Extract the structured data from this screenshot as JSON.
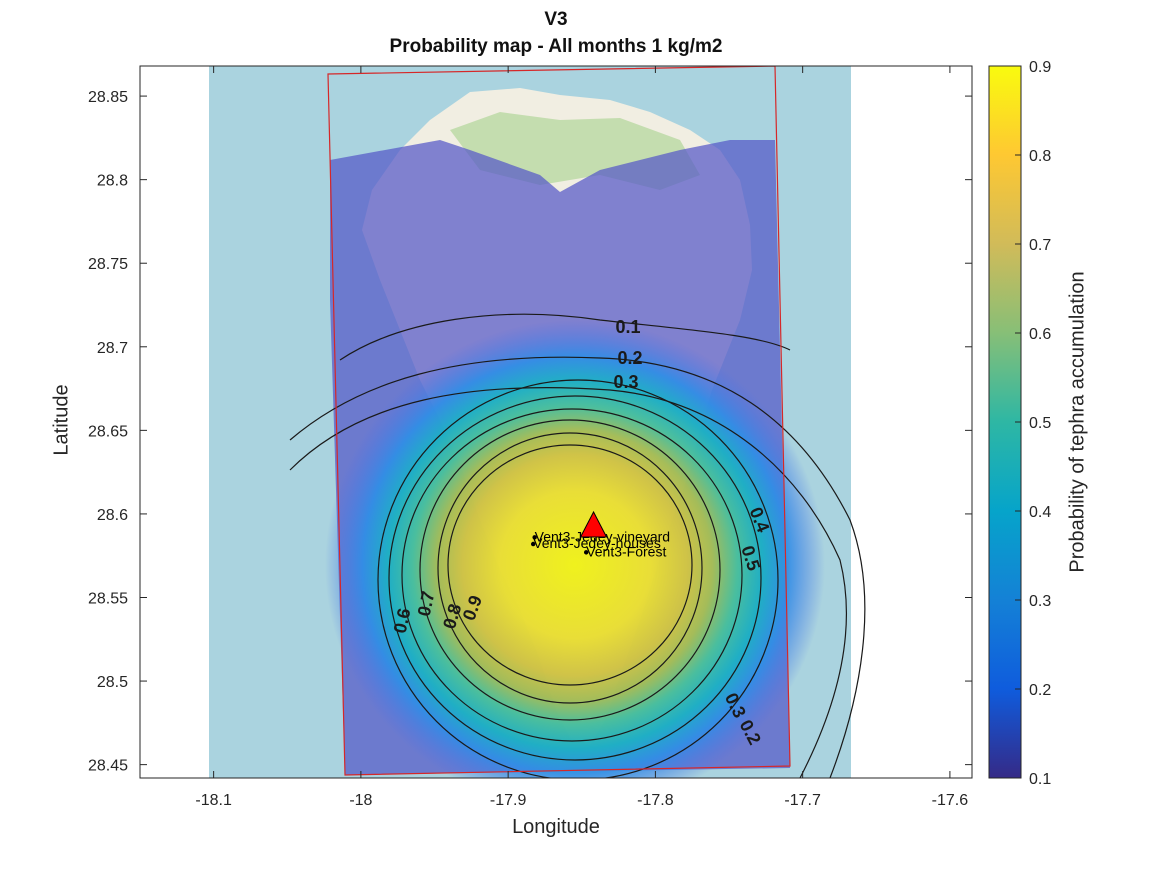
{
  "title_line1": "V3",
  "title_line2": "Probability map - All months 1 kg/m2",
  "xlabel": "Longitude",
  "ylabel": "Latitude",
  "colorbar_label": "Probability of tephra accumulation",
  "chart_data": {
    "type": "heatmap",
    "xlim": [
      -18.15,
      -17.585
    ],
    "ylim": [
      28.442,
      28.868
    ],
    "x_ticks": [
      "-18.1",
      "-18",
      "-17.9",
      "-17.8",
      "-17.7",
      "-17.6"
    ],
    "x_tick_values": [
      -18.1,
      -18.0,
      -17.9,
      -17.8,
      -17.7,
      -17.6
    ],
    "y_ticks": [
      "28.45",
      "28.5",
      "28.55",
      "28.6",
      "28.65",
      "28.7",
      "28.75",
      "28.8",
      "28.85"
    ],
    "y_tick_values": [
      28.45,
      28.5,
      28.55,
      28.6,
      28.65,
      28.7,
      28.75,
      28.8,
      28.85
    ],
    "colorbar": {
      "range": [
        0.1,
        0.9
      ],
      "ticks": [
        "0.1",
        "0.2",
        "0.3",
        "0.4",
        "0.5",
        "0.6",
        "0.7",
        "0.8",
        "0.9"
      ],
      "colormap": "parula"
    },
    "vent": {
      "name": "V3",
      "lon": -17.842,
      "lat": 28.591,
      "color": "#ff0000"
    },
    "sites": [
      {
        "name": "Vent3-Jedey-vineyard",
        "lon": -17.882,
        "lat": 28.586
      },
      {
        "name": "Vent3-Jedey-houses",
        "lon": -17.883,
        "lat": 28.582
      },
      {
        "name": "Vent3-Forest",
        "lon": -17.847,
        "lat": 28.577
      }
    ],
    "contour_labels": [
      "0.1",
      "0.2",
      "0.3",
      "0.4",
      "0.5",
      "0.6",
      "0.7",
      "0.8",
      "0.9",
      "0.3",
      "0.2"
    ],
    "contour_levels": [
      0.1,
      0.2,
      0.3,
      0.4,
      0.5,
      0.6,
      0.7,
      0.8,
      0.9
    ],
    "domain_box_color": "#d62728",
    "grid": false
  }
}
